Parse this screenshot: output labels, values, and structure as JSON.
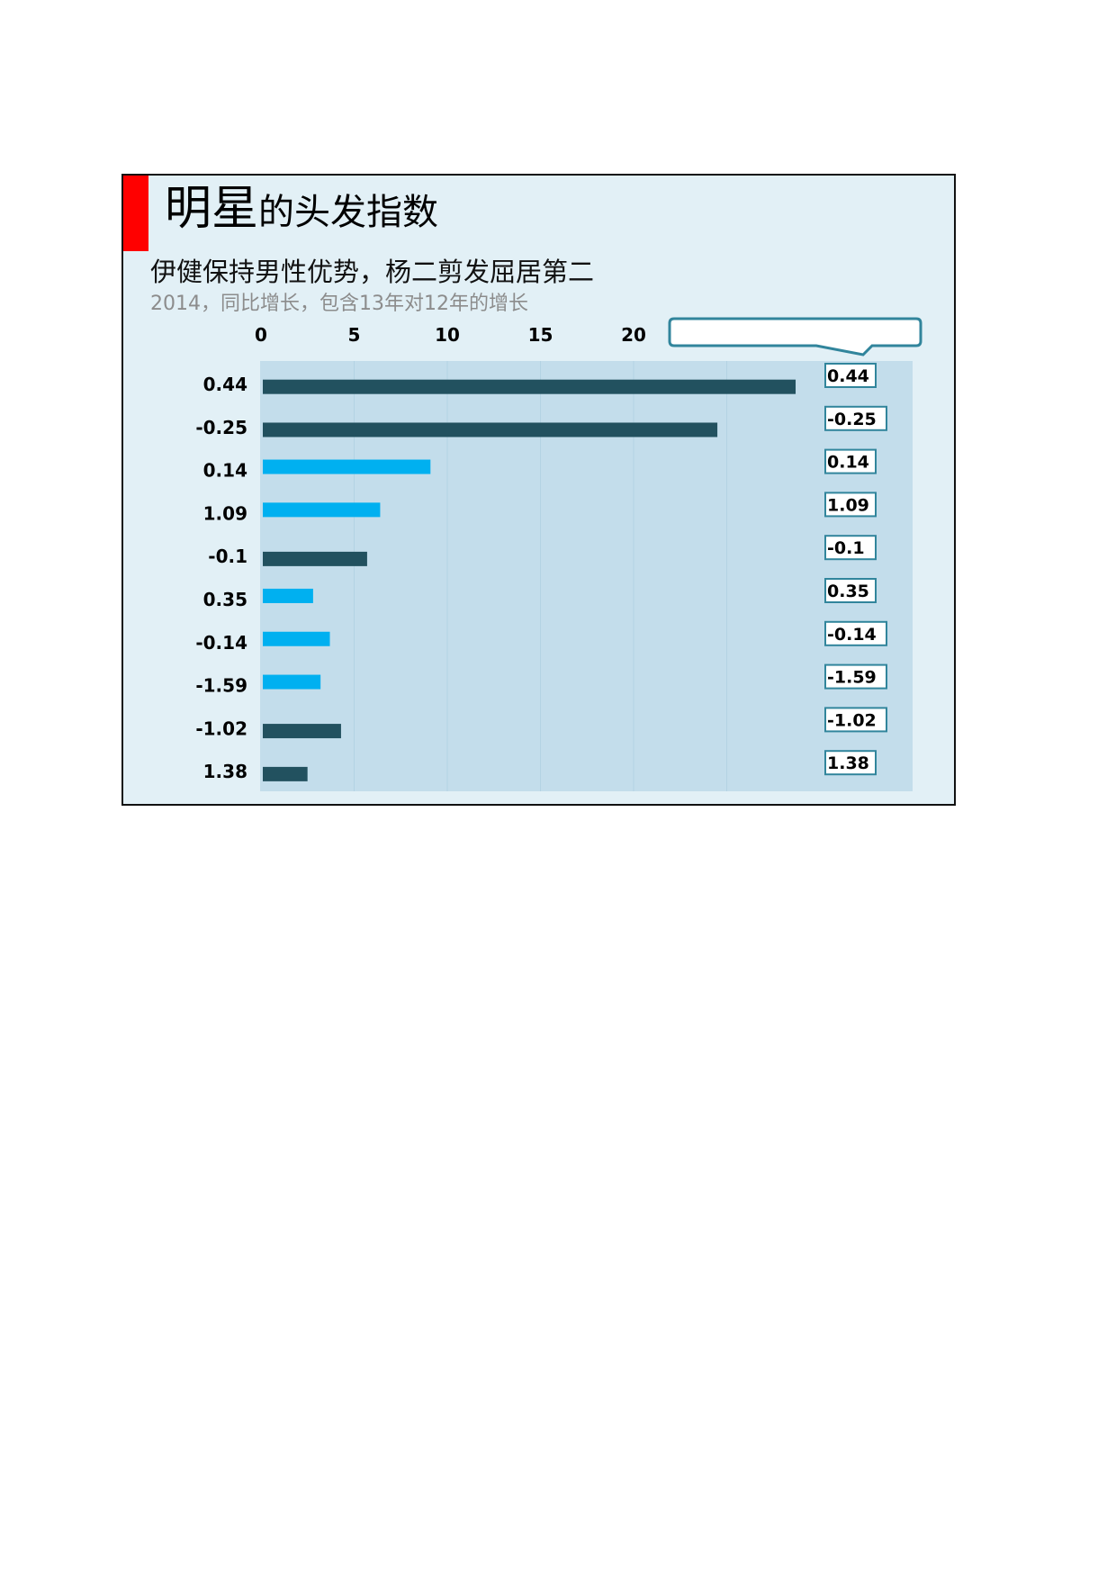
{
  "title": {
    "main": "明星",
    "rest": "的头发指数"
  },
  "subtitle": "伊健保持男性优势，杨二剪发屈居第二",
  "note": "2014，同比增长，包含13年对12年的增长",
  "colors": {
    "dark_bar": "#22515f",
    "light_bar": "#00b0f0",
    "plot_bg": "#c3ddeb",
    "callout": "#31859c",
    "accent": "#ff0000"
  },
  "chart_data": {
    "type": "bar",
    "orientation": "horizontal",
    "xlim": [
      0,
      35
    ],
    "x_ticks": [
      "0",
      "5",
      "10",
      "15",
      "20"
    ],
    "categories": [
      "0.44",
      "-0.25",
      "0.14",
      "1.09",
      "-0.1",
      "0.35",
      "-0.14",
      "-1.59",
      "-1.02",
      "1.38"
    ],
    "values": [
      28.6,
      24.4,
      9,
      6.3,
      5.6,
      2.7,
      3.6,
      3.1,
      4.2,
      2.4
    ],
    "bar_colors": [
      "#22515f",
      "#22515f",
      "#00b0f0",
      "#00b0f0",
      "#22515f",
      "#00b0f0",
      "#00b0f0",
      "#00b0f0",
      "#22515f",
      "#22515f"
    ],
    "growth_labels": [
      "0.44",
      "-0.25",
      "0.14",
      "1.09",
      "-0.1",
      "0.35",
      "-0.14",
      "-1.59",
      "-1.02",
      "1.38"
    ],
    "callout_text": "",
    "grid": true,
    "legend": "none"
  }
}
